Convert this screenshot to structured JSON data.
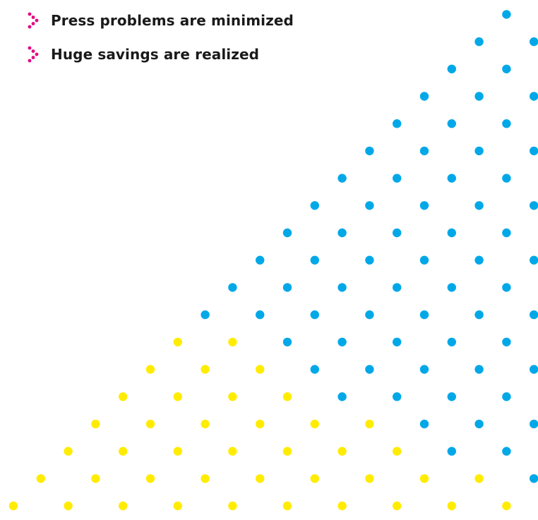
{
  "bullets": [
    {
      "text": "Press problems are minimized",
      "icon": "magenta-dotted-chevron-icon"
    },
    {
      "text": "Huge savings are realized",
      "icon": "magenta-dotted-chevron-icon"
    }
  ],
  "colors": {
    "bullet_icon": "#e6007e",
    "text": "#1a1a1a",
    "dot_cyan": "#00a8e8",
    "dot_yellow": "#ffec00",
    "background": "#ffffff"
  },
  "graphic": {
    "description_name": "dot-triangle-graphic"
  }
}
